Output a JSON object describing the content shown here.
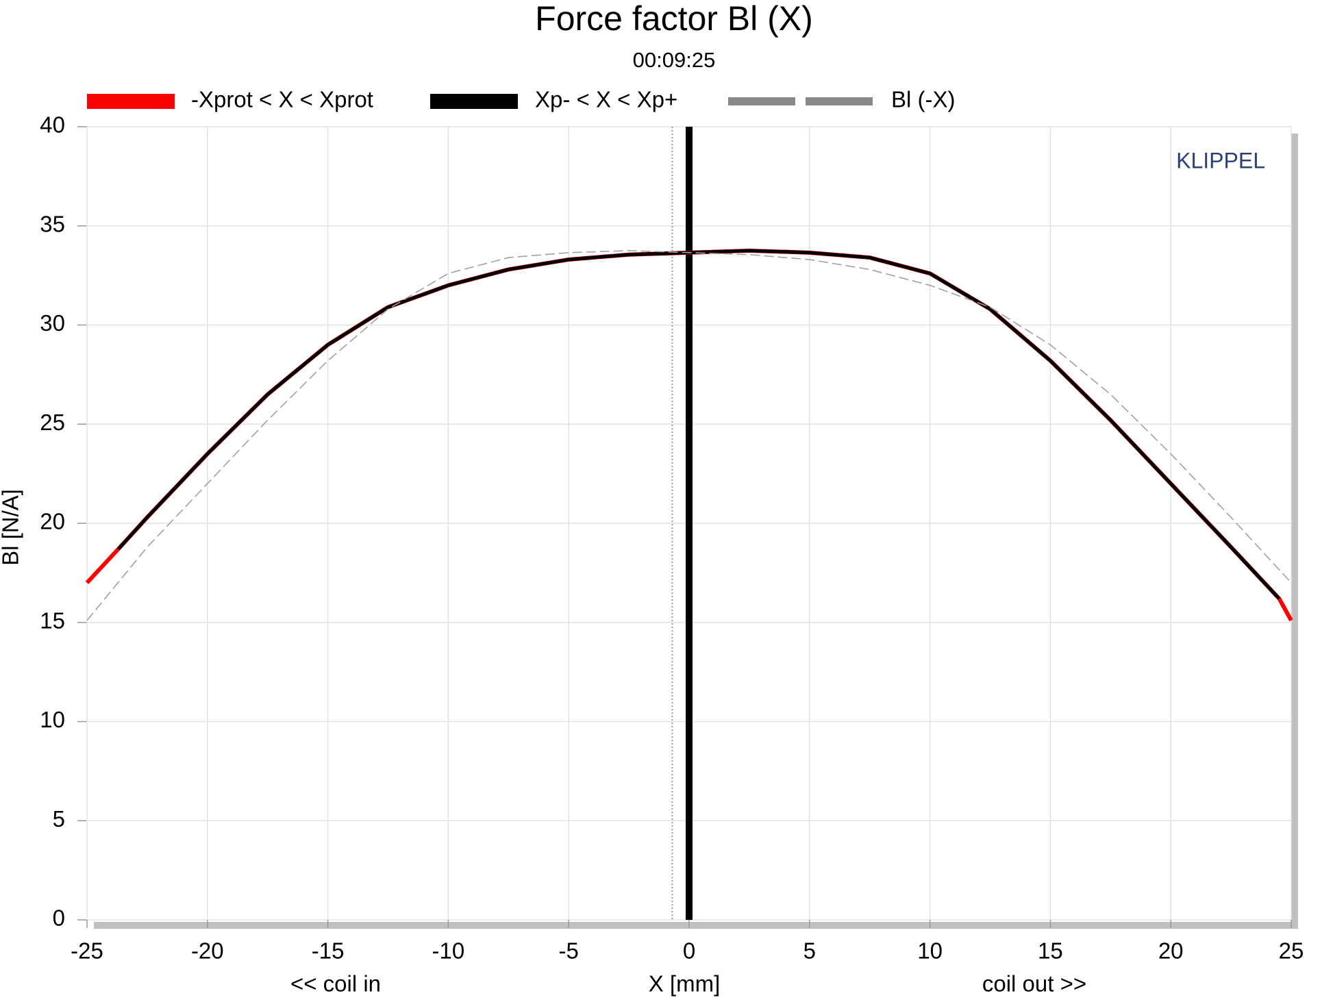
{
  "chart_data": {
    "type": "line",
    "title": "Force factor Bl (X)",
    "subtitle": "00:09:25",
    "x_label": "X [mm]",
    "y_label": "Bl [N/A]",
    "annotations": {
      "left": "<< coil in",
      "right": "coil out >>",
      "brand": "KLIPPEL"
    },
    "xlim": [
      -25,
      25
    ],
    "xticks": [
      -25,
      -20,
      -15,
      -10,
      -5,
      0,
      5,
      10,
      15,
      20,
      25
    ],
    "ylim": [
      0,
      40
    ],
    "yticks": [
      0,
      5,
      10,
      15,
      20,
      25,
      30,
      35,
      40
    ],
    "grid": true,
    "legend": "top",
    "series": [
      {
        "name": "-Xprot < X < Xprot",
        "color": "#ff0000",
        "style": "solid",
        "x": [
          -25,
          -23.7,
          -22.5,
          -20,
          -17.5,
          -15,
          -12.5,
          -10,
          -7.5,
          -5,
          -2.5,
          0,
          2.5,
          5,
          7.5,
          10,
          12.5,
          15,
          17.5,
          20,
          22.5,
          24.5,
          25
        ],
        "values": [
          17.0,
          18.7,
          20.3,
          23.5,
          26.5,
          29.0,
          30.9,
          32.0,
          32.8,
          33.3,
          33.55,
          33.65,
          33.75,
          33.65,
          33.4,
          32.6,
          30.8,
          28.2,
          25.2,
          22.0,
          18.8,
          16.2,
          15.1
        ]
      },
      {
        "name": "Xp- < X < Xp+",
        "color": "#000000",
        "style": "solid",
        "x": [
          -23.7,
          -22.5,
          -20,
          -17.5,
          -15,
          -12.5,
          -10,
          -7.5,
          -5,
          -2.5,
          0,
          2.5,
          5,
          7.5,
          10,
          12.5,
          15,
          17.5,
          20,
          22.5,
          24.5
        ],
        "values": [
          18.7,
          20.3,
          23.5,
          26.5,
          29.0,
          30.9,
          32.0,
          32.8,
          33.3,
          33.55,
          33.65,
          33.75,
          33.65,
          33.4,
          32.6,
          30.8,
          28.2,
          25.2,
          22.0,
          18.8,
          16.2
        ]
      },
      {
        "name": "Bl (-X)",
        "color": "#a0a0a0",
        "style": "dashed",
        "x": [
          -25,
          -22.5,
          -20,
          -17.5,
          -15,
          -12.5,
          -10,
          -7.5,
          -5,
          -2.5,
          0,
          2.5,
          5,
          7.5,
          10,
          12.5,
          15,
          17.5,
          20,
          22.5,
          25
        ],
        "values": [
          15.1,
          18.8,
          22.0,
          25.2,
          28.2,
          30.8,
          32.6,
          33.4,
          33.65,
          33.75,
          33.65,
          33.55,
          33.3,
          32.8,
          32.0,
          30.9,
          29.0,
          26.5,
          23.5,
          20.3,
          17.0
        ]
      }
    ],
    "vlines": [
      {
        "x": 0,
        "color": "#000000",
        "style": "thick"
      },
      {
        "x": -0.7,
        "color": "#999999",
        "style": "dotted"
      }
    ]
  }
}
